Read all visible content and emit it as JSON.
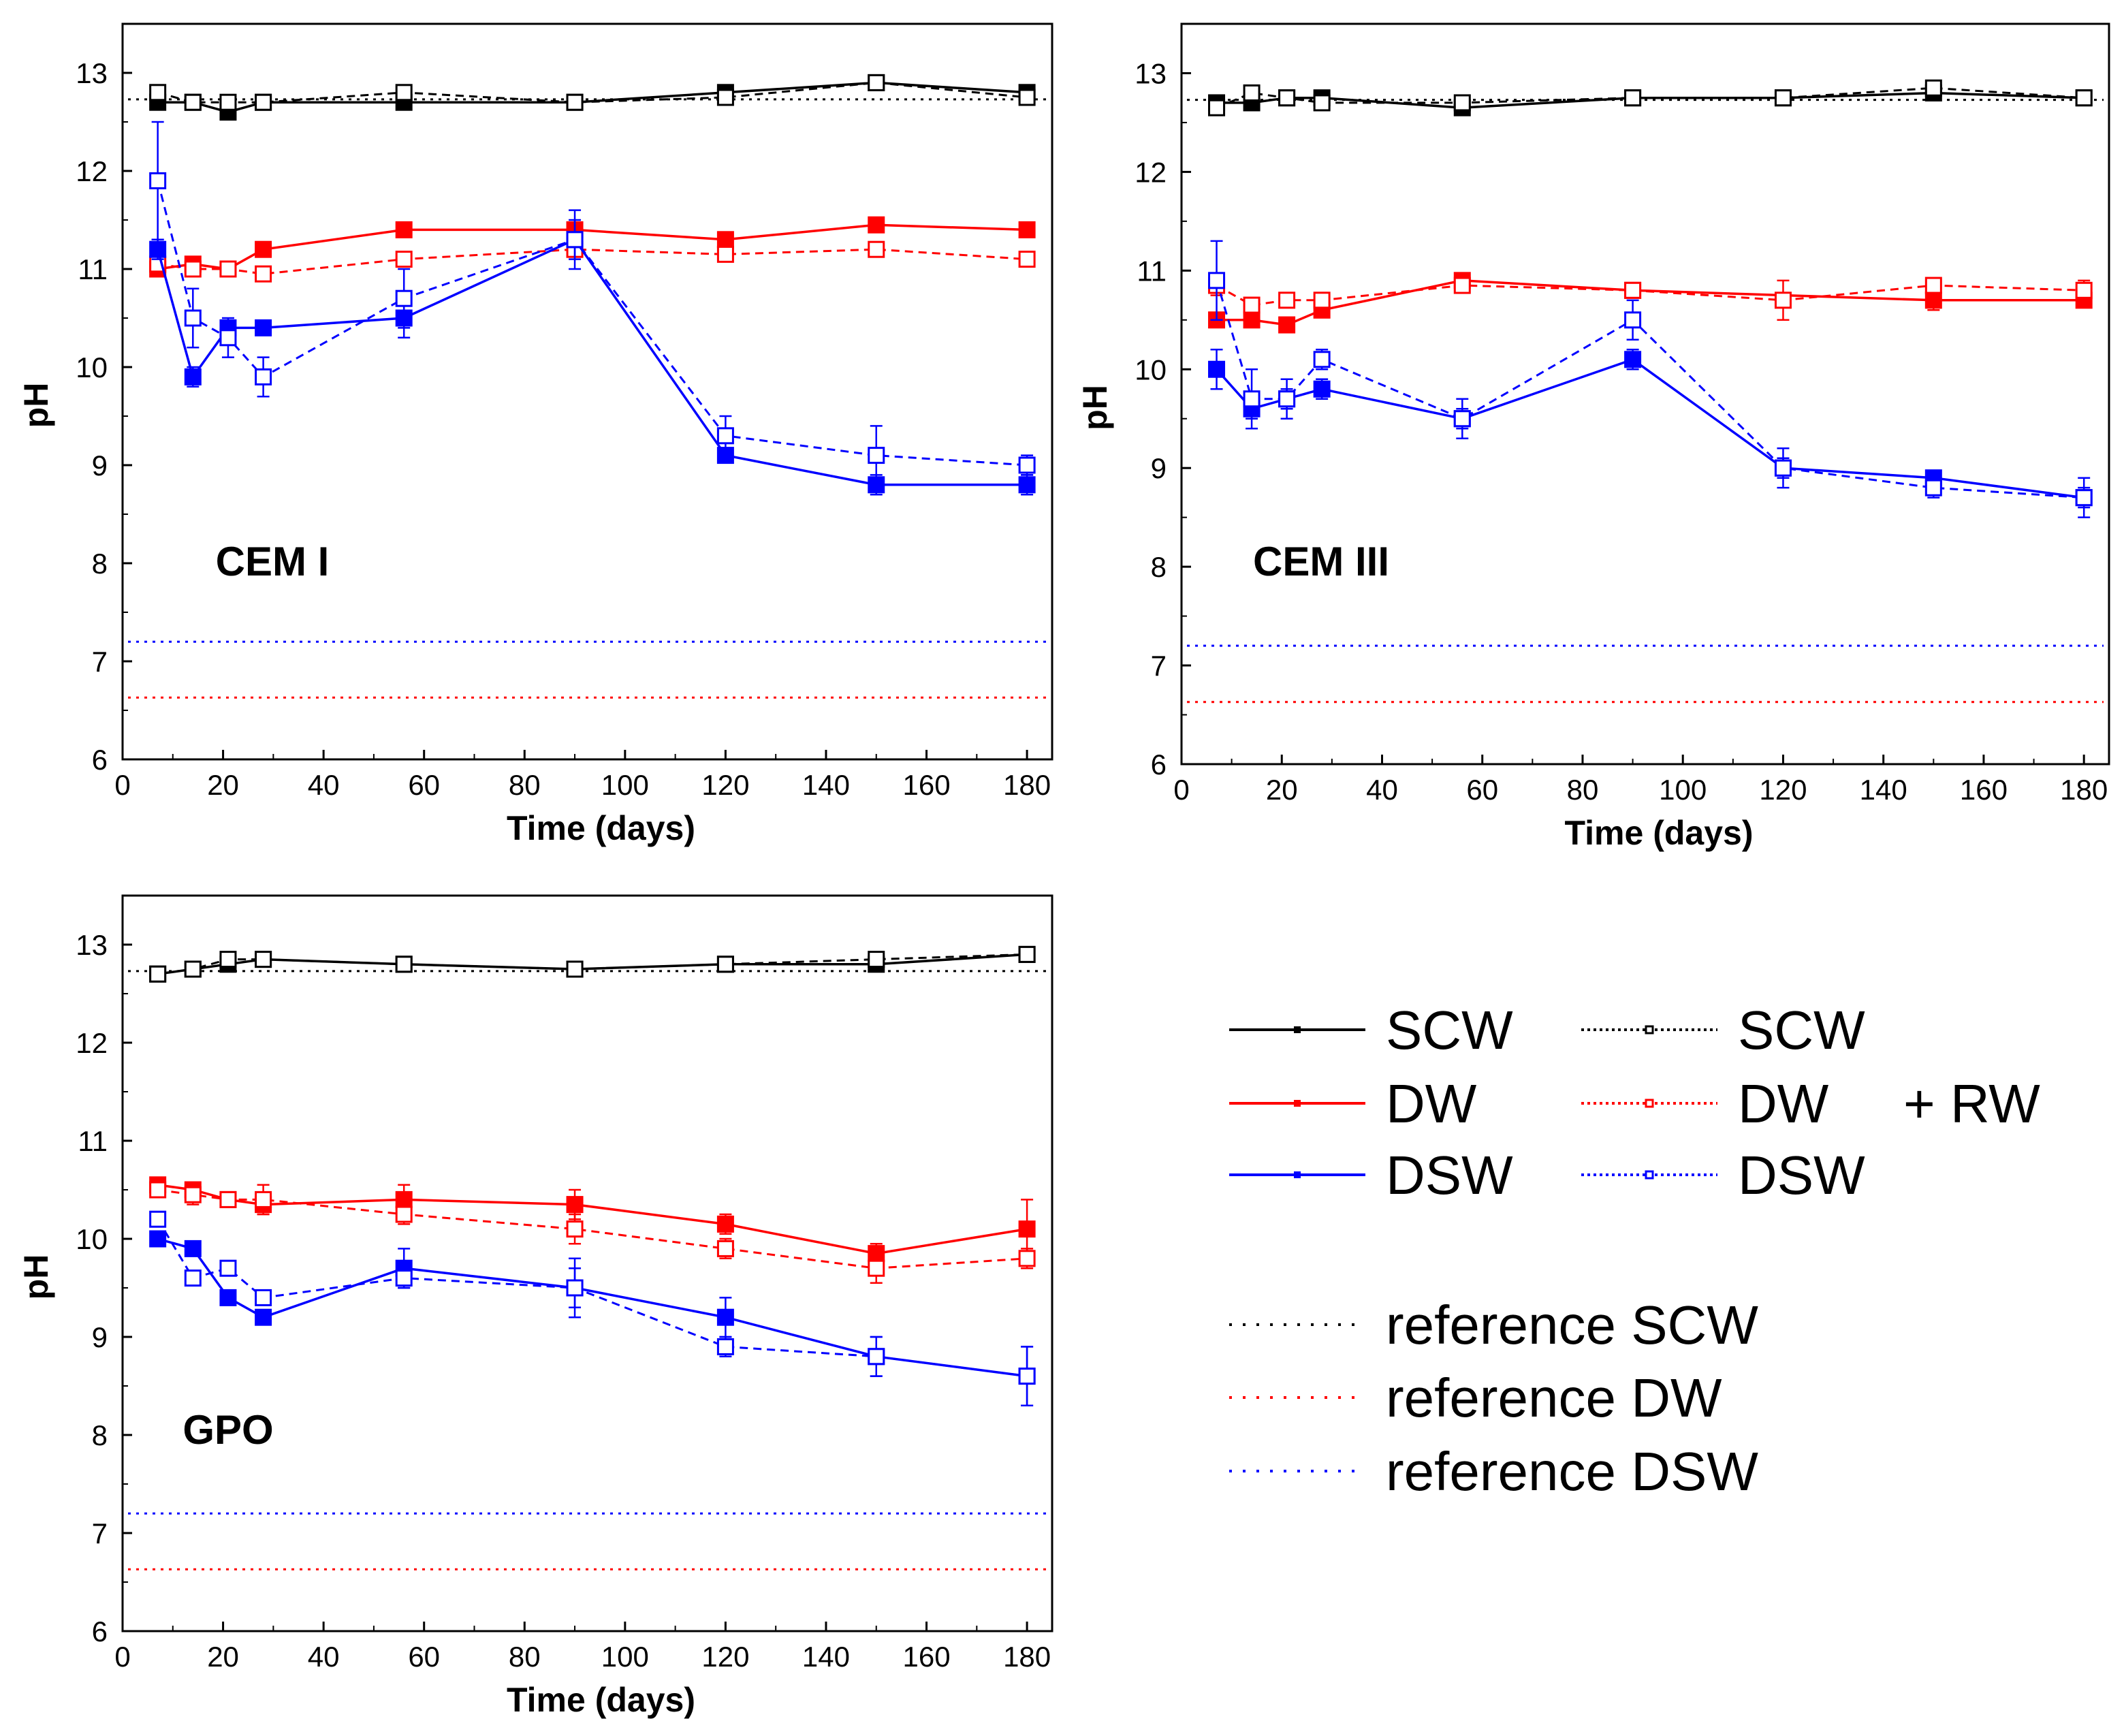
{
  "figure": {
    "legend": {
      "series_labels": [
        "SCW",
        "DW",
        "DSW"
      ],
      "plus_rw_label": "+ RW",
      "reference_labels": [
        "reference SCW",
        "reference DW",
        "reference DSW"
      ]
    }
  },
  "colors": {
    "SCW": "#000000",
    "DW": "#ff0000",
    "DSW": "#0000ff"
  },
  "chart_data": [
    {
      "type": "line",
      "title": "CEM I",
      "xlabel": "Time (days)",
      "ylabel": "pH",
      "xlim": [
        0,
        185
      ],
      "ylim": [
        6,
        13.5
      ],
      "xticks": [
        0,
        20,
        40,
        60,
        80,
        100,
        120,
        140,
        160,
        180
      ],
      "yticks": [
        6,
        7,
        8,
        9,
        10,
        11,
        12,
        13
      ],
      "x": [
        7,
        14,
        21,
        28,
        56,
        90,
        120,
        150,
        180
      ],
      "series": [
        {
          "name": "SCW",
          "filled": true,
          "values": [
            12.7,
            12.7,
            12.6,
            12.7,
            12.7,
            12.7,
            12.8,
            12.9,
            12.8
          ],
          "errors": [
            0.05,
            0.05,
            0.05,
            0.05,
            0.05,
            0.05,
            0.05,
            0.05,
            0.05
          ]
        },
        {
          "name": "SCW + RW",
          "filled": false,
          "values": [
            12.8,
            12.7,
            12.7,
            12.7,
            12.8,
            12.7,
            12.75,
            12.9,
            12.75
          ],
          "errors": [
            0.05,
            0.05,
            0.05,
            0.05,
            0.05,
            0.05,
            0.05,
            0.05,
            0.05
          ]
        },
        {
          "name": "DW",
          "filled": true,
          "values": [
            11.0,
            11.05,
            11.0,
            11.2,
            11.4,
            11.4,
            11.3,
            11.45,
            11.4
          ],
          "errors": [
            0.05,
            0.05,
            0.05,
            0.05,
            0.05,
            0.05,
            0.05,
            0.05,
            0.05
          ]
        },
        {
          "name": "DW + RW",
          "filled": false,
          "values": [
            11.05,
            11.0,
            11.0,
            10.95,
            11.1,
            11.2,
            11.15,
            11.2,
            11.1
          ],
          "errors": [
            0.05,
            0.05,
            0.05,
            0.05,
            0.05,
            0.05,
            0.05,
            0.05,
            0.05
          ]
        },
        {
          "name": "DSW",
          "filled": true,
          "values": [
            11.2,
            9.9,
            10.4,
            10.4,
            10.5,
            11.3,
            9.1,
            8.8,
            8.8
          ],
          "errors": [
            0.1,
            0.1,
            0.05,
            0.05,
            0.2,
            0.2,
            0.05,
            0.1,
            0.1
          ]
        },
        {
          "name": "DSW + RW",
          "filled": false,
          "values": [
            11.9,
            10.5,
            10.3,
            9.9,
            10.7,
            11.3,
            9.3,
            9.1,
            9.0
          ],
          "errors": [
            0.6,
            0.3,
            0.2,
            0.2,
            0.3,
            0.3,
            0.2,
            0.3,
            0.1
          ]
        }
      ],
      "reference_lines": [
        {
          "name": "reference SCW",
          "value": 12.73
        },
        {
          "name": "reference DW",
          "value": 6.63
        },
        {
          "name": "reference DSW",
          "value": 7.2
        }
      ]
    },
    {
      "type": "line",
      "title": "CEM III",
      "xlabel": "Time (days)",
      "ylabel": "pH",
      "xlim": [
        0,
        185
      ],
      "ylim": [
        6,
        13.5
      ],
      "xticks": [
        0,
        20,
        40,
        60,
        80,
        100,
        120,
        140,
        160,
        180
      ],
      "yticks": [
        6,
        7,
        8,
        9,
        10,
        11,
        12,
        13
      ],
      "x": [
        7,
        14,
        21,
        28,
        56,
        90,
        120,
        150,
        180
      ],
      "series": [
        {
          "name": "SCW",
          "filled": true,
          "values": [
            12.7,
            12.7,
            12.75,
            12.75,
            12.65,
            12.75,
            12.75,
            12.8,
            12.75
          ],
          "errors": [
            0.05,
            0.05,
            0.05,
            0.05,
            0.05,
            0.05,
            0.05,
            0.05,
            0.05
          ]
        },
        {
          "name": "SCW + RW",
          "filled": false,
          "values": [
            12.65,
            12.8,
            12.75,
            12.7,
            12.7,
            12.75,
            12.75,
            12.85,
            12.75
          ],
          "errors": [
            0.05,
            0.05,
            0.05,
            0.05,
            0.05,
            0.05,
            0.05,
            0.05,
            0.05
          ]
        },
        {
          "name": "DW",
          "filled": true,
          "values": [
            10.5,
            10.5,
            10.45,
            10.6,
            10.9,
            10.8,
            null,
            10.7,
            10.7
          ],
          "errors": [
            0.05,
            0.05,
            0.05,
            0.05,
            0.05,
            0.05,
            null,
            0.1,
            0.05
          ]
        },
        {
          "name": "DW + RW",
          "filled": false,
          "values": [
            10.85,
            10.65,
            10.7,
            10.7,
            10.85,
            10.8,
            10.7,
            10.85,
            10.8
          ],
          "errors": [
            0.1,
            0.05,
            0.05,
            0.05,
            0.05,
            0.05,
            0.2,
            0.05,
            0.1
          ]
        },
        {
          "name": "DSW",
          "filled": true,
          "values": [
            10.0,
            9.6,
            9.7,
            9.8,
            9.5,
            10.1,
            9.0,
            8.9,
            8.7
          ],
          "errors": [
            0.2,
            0.1,
            0.1,
            0.1,
            0.1,
            0.1,
            0.1,
            0.05,
            0.1
          ]
        },
        {
          "name": "DSW + RW",
          "filled": false,
          "values": [
            10.9,
            9.7,
            9.7,
            10.1,
            9.5,
            10.5,
            9.0,
            8.8,
            8.7
          ],
          "errors": [
            0.4,
            0.3,
            0.2,
            0.1,
            0.2,
            0.2,
            0.2,
            0.1,
            0.2
          ]
        }
      ],
      "reference_lines": [
        {
          "name": "reference SCW",
          "value": 12.73
        },
        {
          "name": "reference DW",
          "value": 6.63
        },
        {
          "name": "reference DSW",
          "value": 7.2
        }
      ]
    },
    {
      "type": "line",
      "title": "GPO",
      "xlabel": "Time (days)",
      "ylabel": "pH",
      "xlim": [
        0,
        185
      ],
      "ylim": [
        6,
        13.5
      ],
      "xticks": [
        0,
        20,
        40,
        60,
        80,
        100,
        120,
        140,
        160,
        180
      ],
      "yticks": [
        6,
        7,
        8,
        9,
        10,
        11,
        12,
        13
      ],
      "x": [
        7,
        14,
        21,
        28,
        56,
        90,
        120,
        150,
        180
      ],
      "series": [
        {
          "name": "SCW",
          "filled": true,
          "values": [
            12.7,
            12.75,
            12.8,
            12.85,
            12.8,
            12.75,
            12.8,
            12.8,
            12.9
          ],
          "errors": [
            0.05,
            0.05,
            0.05,
            0.05,
            0.05,
            0.05,
            0.05,
            0.05,
            0.05
          ]
        },
        {
          "name": "SCW + RW",
          "filled": false,
          "values": [
            12.7,
            12.75,
            12.85,
            12.85,
            12.8,
            12.75,
            12.8,
            12.85,
            12.9
          ],
          "errors": [
            0.05,
            0.05,
            0.05,
            0.05,
            0.05,
            0.05,
            0.05,
            0.05,
            0.05
          ]
        },
        {
          "name": "DW",
          "filled": true,
          "values": [
            10.55,
            10.5,
            10.4,
            10.35,
            10.4,
            10.35,
            10.15,
            9.85,
            10.1
          ],
          "errors": [
            0.05,
            0.05,
            0.05,
            0.1,
            0.15,
            0.15,
            0.1,
            0.1,
            0.3
          ]
        },
        {
          "name": "DW + RW",
          "filled": false,
          "values": [
            10.5,
            10.45,
            10.4,
            10.4,
            10.25,
            10.1,
            9.9,
            9.7,
            9.8
          ],
          "errors": [
            0.05,
            0.1,
            0.05,
            0.15,
            0.1,
            0.15,
            0.1,
            0.15,
            0.1
          ]
        },
        {
          "name": "DSW",
          "filled": true,
          "values": [
            10.0,
            9.9,
            9.4,
            9.2,
            9.7,
            9.5,
            9.2,
            8.8,
            8.6
          ],
          "errors": [
            0.05,
            0.05,
            0.05,
            0.05,
            0.2,
            0.2,
            0.2,
            0.2,
            0.3
          ]
        },
        {
          "name": "DSW + RW",
          "filled": false,
          "values": [
            10.2,
            9.6,
            9.7,
            9.4,
            9.6,
            9.5,
            8.9,
            8.8,
            8.6
          ],
          "errors": [
            0.05,
            0.05,
            0.05,
            0.05,
            0.1,
            0.3,
            0.1,
            0.2,
            0.3
          ]
        }
      ],
      "reference_lines": [
        {
          "name": "reference SCW",
          "value": 12.73
        },
        {
          "name": "reference DW",
          "value": 6.63
        },
        {
          "name": "reference DSW",
          "value": 7.2
        }
      ]
    }
  ]
}
